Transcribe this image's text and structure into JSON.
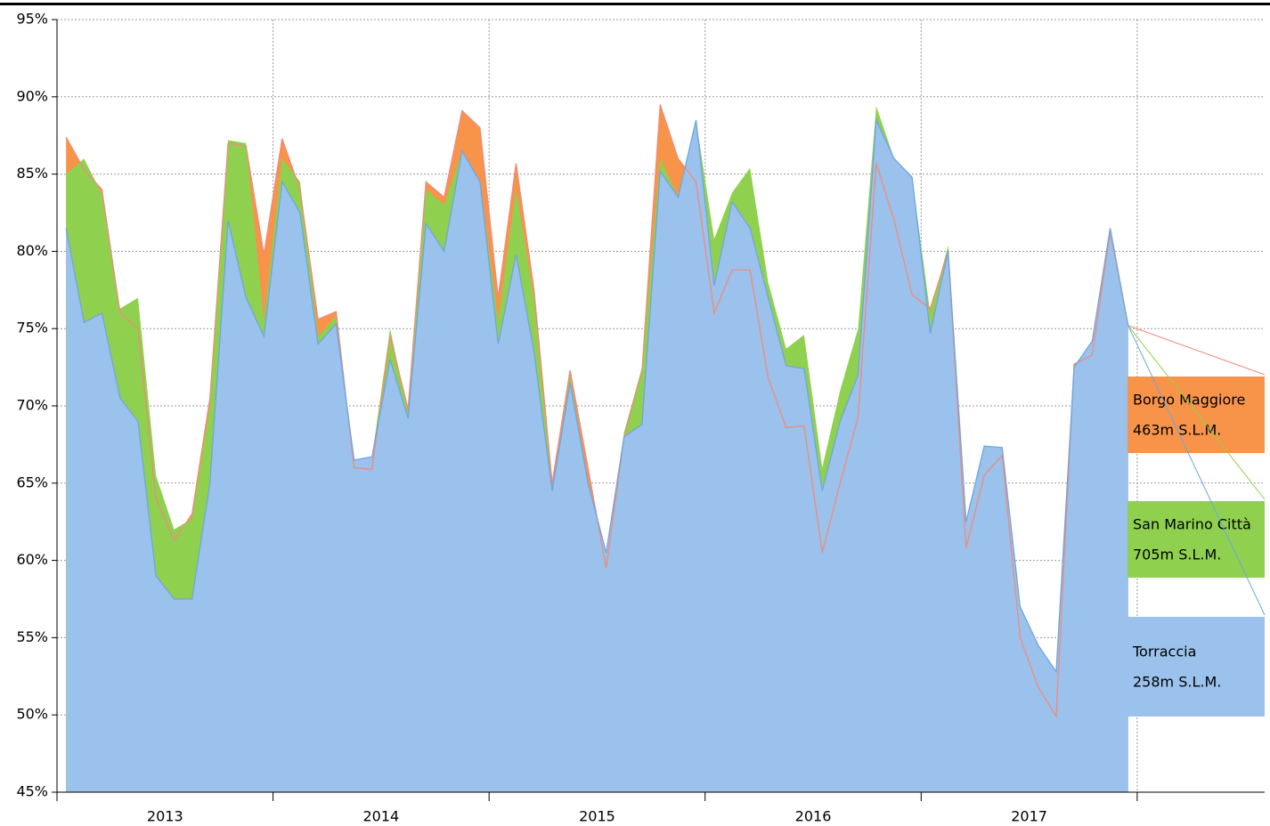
{
  "chart_data": {
    "type": "area",
    "x": [
      2013.042,
      2013.125,
      2013.208,
      2013.292,
      2013.375,
      2013.458,
      2013.542,
      2013.625,
      2013.708,
      2013.792,
      2013.875,
      2013.958,
      2014.042,
      2014.125,
      2014.208,
      2014.292,
      2014.375,
      2014.458,
      2014.542,
      2014.625,
      2014.708,
      2014.792,
      2014.875,
      2014.958,
      2015.042,
      2015.125,
      2015.208,
      2015.292,
      2015.375,
      2015.458,
      2015.542,
      2015.625,
      2015.708,
      2015.792,
      2015.875,
      2015.958,
      2016.042,
      2016.125,
      2016.208,
      2016.292,
      2016.375,
      2016.458,
      2016.542,
      2016.625,
      2016.708,
      2016.792,
      2016.875,
      2016.958,
      2017.042,
      2017.125,
      2017.208,
      2017.292,
      2017.375,
      2017.458,
      2017.542,
      2017.625,
      2017.708,
      2017.792,
      2017.875,
      2017.958
    ],
    "series": [
      {
        "name": "Borgo Maggiore",
        "altitude": "463m S.L.M.",
        "color": "#f7944a",
        "line_color": "#f08a7a",
        "values": [
          87.4,
          85.3,
          84.0,
          76.0,
          75.0,
          64.0,
          61.3,
          63.0,
          70.5,
          87.0,
          86.8,
          79.8,
          87.3,
          84.0,
          75.6,
          76.1,
          66.0,
          65.9,
          74.5,
          69.8,
          84.5,
          83.5,
          89.1,
          88.0,
          77.0,
          85.7,
          77.5,
          65.0,
          72.3,
          66.0,
          59.5,
          68.0,
          72.3,
          89.5,
          86.0,
          84.5,
          76.0,
          78.8,
          78.8,
          71.8,
          68.6,
          68.7,
          60.5,
          65.0,
          69.3,
          85.7,
          82.0,
          77.2,
          76.3,
          80.0,
          60.8,
          65.5,
          66.8,
          55.0,
          51.8,
          49.9,
          72.7,
          73.3,
          81.3,
          75.2
        ]
      },
      {
        "name": "San Marino Città",
        "altitude": "705m S.L.M.",
        "color": "#8fd14f",
        "values": [
          85.0,
          86.0,
          83.7,
          76.3,
          77.0,
          65.5,
          62.0,
          62.7,
          70.0,
          87.2,
          87.0,
          75.5,
          86.0,
          84.5,
          74.5,
          75.8,
          66.5,
          66.7,
          75.0,
          69.5,
          84.0,
          83.0,
          86.5,
          84.5,
          75.5,
          84.0,
          77.0,
          64.5,
          72.0,
          65.0,
          60.5,
          68.3,
          72.5,
          86.0,
          83.5,
          88.5,
          80.8,
          83.8,
          85.4,
          78.0,
          73.7,
          74.6,
          66.0,
          71.0,
          75.0,
          89.4,
          86.0,
          84.8,
          76.0,
          80.4,
          62.5,
          67.4,
          67.3,
          57.0,
          54.5,
          52.8,
          72.5,
          74.2,
          81.6,
          75.2
        ]
      },
      {
        "name": "Torraccia",
        "altitude": "258m S.L.M.",
        "color": "#9ac2ec",
        "line_color": "#6ea6e0",
        "values": [
          81.5,
          75.4,
          76.0,
          70.5,
          69.0,
          59.0,
          57.5,
          57.5,
          65.0,
          82.0,
          77.0,
          74.5,
          84.5,
          82.5,
          74.0,
          75.3,
          66.5,
          66.7,
          73.0,
          69.2,
          81.8,
          80.0,
          86.5,
          84.5,
          74.0,
          79.8,
          73.5,
          64.5,
          71.5,
          65.0,
          60.5,
          68.0,
          68.8,
          85.2,
          83.5,
          88.5,
          77.8,
          83.2,
          81.5,
          77.0,
          72.6,
          72.4,
          64.5,
          69.0,
          72.0,
          88.5,
          86.0,
          84.8,
          74.7,
          80.0,
          62.5,
          67.4,
          67.3,
          57.0,
          54.5,
          52.8,
          72.5,
          74.2,
          81.5,
          75.2
        ]
      }
    ],
    "xlim": [
      2013,
      2018.59
    ],
    "xticks": [
      2013,
      2014,
      2015,
      2016,
      2017,
      2018
    ],
    "year_labels": [
      "2013",
      "2014",
      "2015",
      "2016",
      "2017"
    ],
    "ylim": [
      45,
      95
    ],
    "yticks": [
      {
        "value": 45,
        "label": "45%"
      },
      {
        "value": 50,
        "label": "50%"
      },
      {
        "value": 55,
        "label": "55%"
      },
      {
        "value": 60,
        "label": "60%"
      },
      {
        "value": 65,
        "label": "65%"
      },
      {
        "value": 70,
        "label": "70%"
      },
      {
        "value": 75,
        "label": "75%"
      },
      {
        "value": 80,
        "label": "80%"
      },
      {
        "value": 85,
        "label": "85%"
      },
      {
        "value": 90,
        "label": "90%"
      },
      {
        "value": 95,
        "label": "95%"
      }
    ],
    "grid": true
  }
}
